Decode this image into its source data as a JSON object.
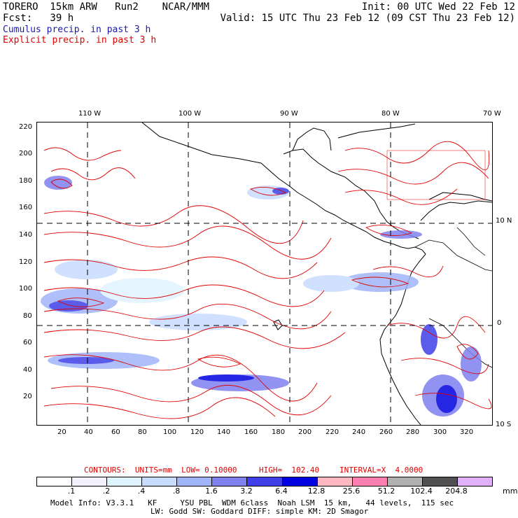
{
  "header": {
    "line1_left": "TORERO  15km ARW   Run2    NCAR/MMM",
    "line1_right": "Init: 00 UTC Wed 22 Feb 12",
    "line2_left": "Fcst:   39 h",
    "line2_right": "Valid: 15 UTC Thu 23 Feb 12 (09 CST Thu 23 Feb 12)",
    "cumulus": "Cumulus precip. in past 3 h",
    "explicit": "Explicit precip. in past 3 h"
  },
  "axes": {
    "top_lon": [
      "110 W",
      "100 W",
      "90 W",
      "80 W",
      "70 W"
    ],
    "left_y": [
      "220",
      "200",
      "180",
      "160",
      "140",
      "120",
      "100",
      "80",
      "60",
      "40",
      "20"
    ],
    "bottom_x": [
      "20",
      "40",
      "60",
      "80",
      "100",
      "120",
      "140",
      "160",
      "180",
      "200",
      "220",
      "240",
      "260",
      "280",
      "300",
      "320"
    ],
    "right_lat": [
      "10 N",
      "0",
      "10 S"
    ]
  },
  "contour_info": {
    "units": "CONTOURS:  UNITS=mm  LOW= 0.10000",
    "high": "HIGH=  102.40",
    "interval": "INTERVAL=X  4.0000"
  },
  "legend": {
    "labels": [
      ".1",
      ".2",
      ".4",
      ".8",
      "1.6",
      "3.2",
      "6.4",
      "12.8",
      "25.6",
      "51.2",
      "102.4",
      "204.8"
    ],
    "unit": "mm",
    "colors": [
      "#ffffff",
      "#f2f2ff",
      "#e0f4ff",
      "#c8dcff",
      "#a0b4f8",
      "#8080f0",
      "#4040e8",
      "#0000e0",
      "#ffb8c0",
      "#ff80b0",
      "#b0b0b0",
      "#505050",
      "#e0b0f8"
    ]
  },
  "model_info": {
    "line1": "Model Info: V3.3.1   KF     YSU PBL  WDM 6class  Noah LSM  15 km,   44 levels,  115 sec",
    "line2": "LW: Godd SW: Goddard DIFF: simple KM: 2D Smagor"
  }
}
